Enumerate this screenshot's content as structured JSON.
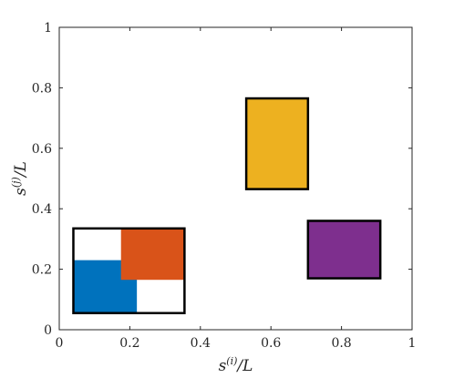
{
  "chart_data": {
    "type": "rectangles",
    "xlabel": "s^{(i)}/L",
    "ylabel": "s^{(j)}/L",
    "xlim": [
      0,
      1
    ],
    "ylim": [
      0,
      1
    ],
    "xticks": [
      "0",
      "0.2",
      "0.4",
      "0.6",
      "0.8",
      "1"
    ],
    "yticks": [
      "0",
      "0.2",
      "0.4",
      "0.6",
      "0.8",
      "1"
    ],
    "grid": false,
    "rectangles": [
      {
        "x0": 0.04,
        "x1": 0.22,
        "y0": 0.055,
        "y1": 0.23,
        "fill": "#0072BD",
        "outline": false
      },
      {
        "x0": 0.175,
        "x1": 0.355,
        "y0": 0.165,
        "y1": 0.335,
        "fill": "#D95319",
        "outline": false
      },
      {
        "x0": 0.04,
        "x1": 0.355,
        "y0": 0.055,
        "y1": 0.335,
        "fill": "none",
        "outline": true
      },
      {
        "x0": 0.53,
        "x1": 0.705,
        "y0": 0.465,
        "y1": 0.765,
        "fill": "#EDB120",
        "outline": true
      },
      {
        "x0": 0.705,
        "x1": 0.91,
        "y0": 0.17,
        "y1": 0.36,
        "fill": "#7E2F8E",
        "outline": true
      }
    ]
  }
}
